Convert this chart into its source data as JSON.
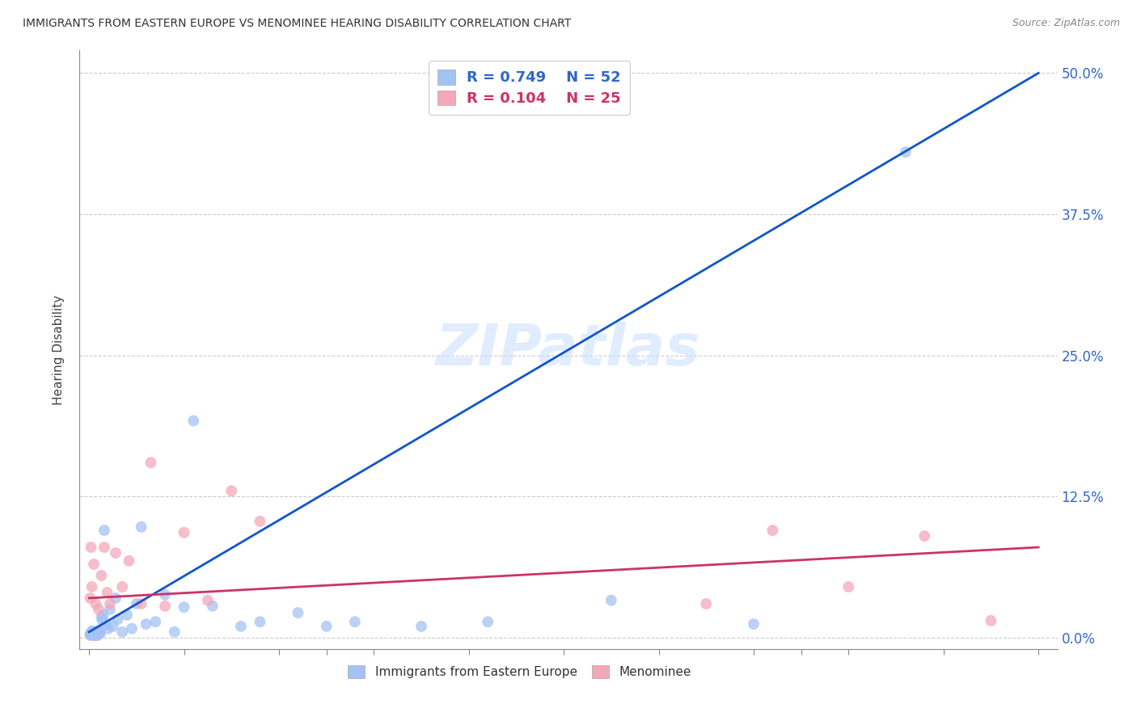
{
  "title": "IMMIGRANTS FROM EASTERN EUROPE VS MENOMINEE HEARING DISABILITY CORRELATION CHART",
  "source": "Source: ZipAtlas.com",
  "ylabel": "Hearing Disability",
  "ytick_values": [
    0.0,
    12.5,
    25.0,
    37.5,
    50.0
  ],
  "ytick_labels": [
    "0.0%",
    "12.5%",
    "25.0%",
    "37.5%",
    "50.0%"
  ],
  "xlim": [
    0,
    100
  ],
  "ylim": [
    0,
    52
  ],
  "legend_blue_label": "Immigrants from Eastern Europe",
  "legend_pink_label": "Menominee",
  "R_blue": "0.749",
  "N_blue": "52",
  "R_pink": "0.104",
  "N_pink": "25",
  "blue_color": "#a4c2f4",
  "pink_color": "#f4a7b9",
  "line_blue": "#1155cc",
  "line_pink": "#cc3366",
  "watermark": "ZIPatlas",
  "blue_scatter_x": [
    0.1,
    0.15,
    0.2,
    0.25,
    0.3,
    0.35,
    0.4,
    0.45,
    0.5,
    0.55,
    0.6,
    0.65,
    0.7,
    0.75,
    0.8,
    0.85,
    0.9,
    1.0,
    1.1,
    1.2,
    1.3,
    1.4,
    1.5,
    1.6,
    1.8,
    2.0,
    2.2,
    2.5,
    2.8,
    3.0,
    3.5,
    4.0,
    4.5,
    5.0,
    5.5,
    6.0,
    7.0,
    8.0,
    9.0,
    10.0,
    11.0,
    13.0,
    16.0,
    18.0,
    22.0,
    25.0,
    28.0,
    35.0,
    42.0,
    55.0,
    70.0,
    86.0
  ],
  "blue_scatter_y": [
    0.3,
    0.2,
    0.4,
    0.5,
    0.3,
    0.6,
    0.4,
    0.2,
    0.3,
    0.5,
    0.4,
    0.3,
    0.2,
    0.4,
    0.5,
    0.3,
    0.2,
    0.6,
    0.5,
    0.4,
    1.8,
    1.5,
    2.0,
    9.5,
    1.2,
    0.8,
    2.5,
    1.0,
    3.5,
    1.6,
    0.5,
    2.0,
    0.8,
    3.0,
    9.8,
    1.2,
    1.4,
    3.8,
    0.5,
    2.7,
    19.2,
    2.8,
    1.0,
    1.4,
    2.2,
    1.0,
    1.4,
    1.0,
    1.4,
    3.3,
    1.2,
    43.0
  ],
  "pink_scatter_x": [
    0.1,
    0.2,
    0.3,
    0.5,
    0.7,
    1.0,
    1.3,
    1.6,
    1.9,
    2.2,
    2.8,
    3.5,
    4.2,
    5.5,
    6.5,
    8.0,
    10.0,
    12.5,
    15.0,
    18.0,
    65.0,
    72.0,
    80.0,
    88.0,
    95.0
  ],
  "pink_scatter_y": [
    3.5,
    8.0,
    4.5,
    6.5,
    3.0,
    2.5,
    5.5,
    8.0,
    4.0,
    3.0,
    7.5,
    4.5,
    6.8,
    3.0,
    15.5,
    2.8,
    9.3,
    3.3,
    13.0,
    10.3,
    3.0,
    9.5,
    4.5,
    9.0,
    1.5
  ],
  "background_color": "#ffffff",
  "grid_color": "#cccccc",
  "line_blue_endpoints": [
    0.0,
    0.5,
    100.0,
    50.0
  ],
  "line_pink_endpoints": [
    0.0,
    3.5,
    100.0,
    8.0
  ]
}
